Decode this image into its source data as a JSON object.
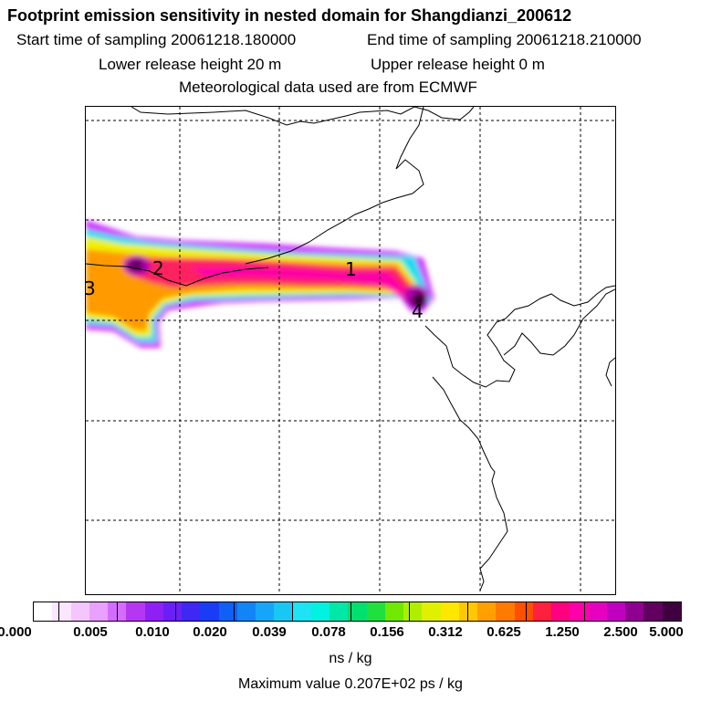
{
  "header": {
    "title": "Footprint emission sensitivity in nested domain for Shangdianzi_200612",
    "start_label": "Start time of sampling 20061218.180000",
    "end_label": "End time of sampling 20061218.210000",
    "lower_label": "Lower release height   20 m",
    "upper_label": "Upper release height    0 m",
    "met_label": "Meteorological data used are from ECMWF"
  },
  "map": {
    "markers": [
      "1",
      "2",
      "3",
      "4"
    ]
  },
  "colorbar": {
    "ticks": [
      "0.000",
      "0.005",
      "0.010",
      "0.020",
      "0.039",
      "0.078",
      "0.156",
      "0.312",
      "0.625",
      "1.250",
      "2.500",
      "5.000"
    ],
    "colors": [
      "#ffffff",
      "#fbe6ff",
      "#f4c6ff",
      "#eaa0ff",
      "#d36dff",
      "#b637f2",
      "#8f20f5",
      "#6a1ff7",
      "#3f27f4",
      "#1b3cf5",
      "#1060f5",
      "#1185f6",
      "#17a6f7",
      "#19c7f5",
      "#1ee3f4",
      "#00f2e0",
      "#00e8a8",
      "#00e070",
      "#20e040",
      "#70e800",
      "#b0ee00",
      "#dff000",
      "#ffe800",
      "#ffc800",
      "#ffa000",
      "#ff7a00",
      "#ff5000",
      "#ff2040",
      "#ff0080",
      "#ff00a8",
      "#e800c0",
      "#c000c0",
      "#900090",
      "#600060",
      "#400040"
    ],
    "units": "ns / kg",
    "max_value": "Maximum value  0.207E+02 ps / kg"
  }
}
